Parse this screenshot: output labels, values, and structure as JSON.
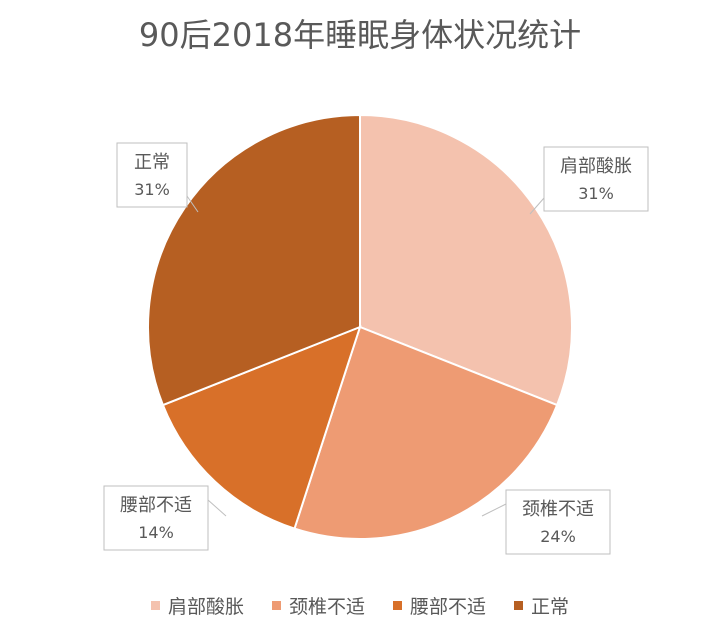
{
  "chart_data": {
    "type": "pie",
    "title": "90后2018年睡眠身体状况统计",
    "categories": [
      "肩部酸胀",
      "颈椎不适",
      "腰部不适",
      "正常"
    ],
    "values": [
      31,
      24,
      14,
      31
    ],
    "labels": [
      "31%",
      "24%",
      "14%",
      "31%"
    ],
    "colors": [
      "#F4C2AE",
      "#EE9B73",
      "#D87029",
      "#B65F22"
    ],
    "legend_position": "bottom"
  }
}
